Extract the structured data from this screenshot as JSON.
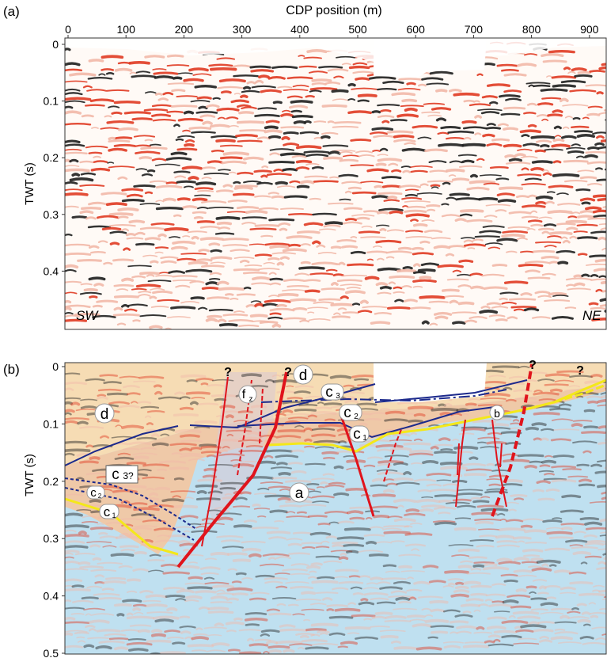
{
  "panel_a": {
    "label": "(a)",
    "x_axis_title": "CDP position (m)",
    "x_ticks": [
      "0",
      "100",
      "200",
      "300",
      "400",
      "500",
      "600",
      "700",
      "800",
      "900"
    ],
    "y_axis_title": "TWT (s)",
    "y_ticks": [
      "0",
      "0.1",
      "0.2",
      "0.3",
      "0.4"
    ],
    "corner_left": "SW",
    "corner_right": "NE"
  },
  "panel_b": {
    "label": "(b)",
    "y_axis_title": "TWT (s)",
    "y_ticks": [
      "0",
      "0.1",
      "0.2",
      "0.3",
      "0.4",
      "0.5"
    ],
    "units": [
      {
        "text": "d",
        "sub": ""
      },
      {
        "text": "d",
        "sub": ""
      },
      {
        "text": "a",
        "sub": ""
      },
      {
        "text": "b",
        "sub": ""
      },
      {
        "text": "f",
        "sub": "z"
      },
      {
        "text": "c",
        "sub": "3"
      },
      {
        "text": "c",
        "sub": "2"
      },
      {
        "text": "c",
        "sub": "1"
      },
      {
        "text": "c",
        "sub": "3?"
      },
      {
        "text": "c",
        "sub": "2"
      },
      {
        "text": "c",
        "sub": "1"
      }
    ],
    "question_marks": [
      "?",
      "?",
      "?",
      "?"
    ]
  },
  "colors": {
    "seismic_red": "#e03a22",
    "seismic_black": "#1e1e1e",
    "unit_d_fill": "#f6dcb4",
    "unit_a_fill": "#bfe0f0",
    "horizon_blue": "#1c2a8c",
    "horizon_yellow": "#f4e81a",
    "fault_red": "#e0141c"
  }
}
